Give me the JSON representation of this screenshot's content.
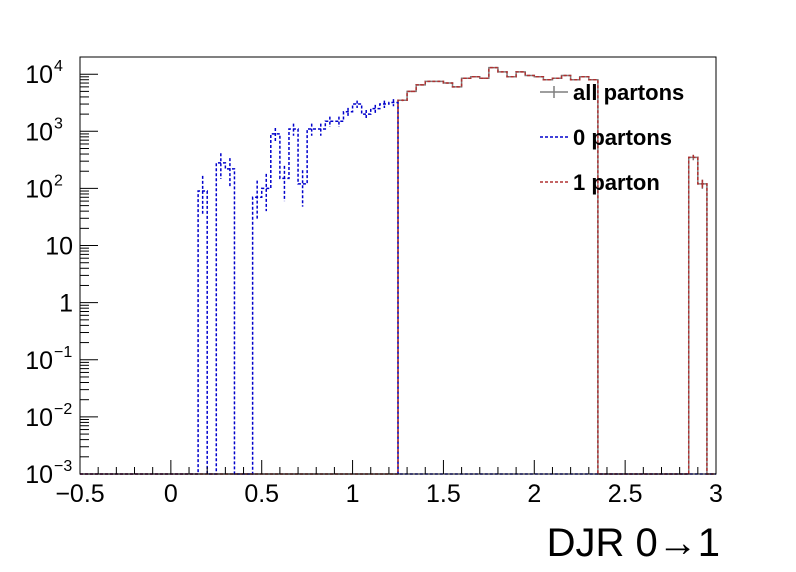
{
  "chart_data": {
    "type": "histogram",
    "title": "",
    "xlabel": "DJR 0→1",
    "ylabel": "",
    "xlim": [
      -0.5,
      3.0
    ],
    "ylim": [
      0.001,
      20000
    ],
    "yscale": "log",
    "grid": false,
    "legend_position": "top-right",
    "bin_width": 0.05,
    "x_ticks": [
      {
        "value": -0.5,
        "label": "−0.5"
      },
      {
        "value": 0,
        "label": "0"
      },
      {
        "value": 0.5,
        "label": "0.5"
      },
      {
        "value": 1,
        "label": "1"
      },
      {
        "value": 1.5,
        "label": "1.5"
      },
      {
        "value": 2,
        "label": "2"
      },
      {
        "value": 2.5,
        "label": "2.5"
      },
      {
        "value": 3,
        "label": "3"
      }
    ],
    "y_ticks": [
      {
        "value": 0.001,
        "base": "10",
        "exp": "−3"
      },
      {
        "value": 0.01,
        "base": "10",
        "exp": "−2"
      },
      {
        "value": 0.1,
        "base": "10",
        "exp": "−1"
      },
      {
        "value": 1,
        "base": "1",
        "exp": ""
      },
      {
        "value": 10,
        "base": "10",
        "exp": ""
      },
      {
        "value": 100,
        "base": "10",
        "exp": "2"
      },
      {
        "value": 1000,
        "base": "10",
        "exp": "3"
      },
      {
        "value": 10000,
        "base": "10",
        "exp": "4"
      }
    ],
    "series": [
      {
        "name": "all partons",
        "color": "#7f7f7f",
        "style": "solid",
        "bins": [
          [
            1.25,
            3500
          ],
          [
            1.3,
            5000
          ],
          [
            1.35,
            6500
          ],
          [
            1.4,
            7500
          ],
          [
            1.45,
            7500
          ],
          [
            1.5,
            7000
          ],
          [
            1.55,
            6000
          ],
          [
            1.6,
            8500
          ],
          [
            1.65,
            9000
          ],
          [
            1.7,
            8500
          ],
          [
            1.75,
            13000
          ],
          [
            1.8,
            11000
          ],
          [
            1.85,
            9000
          ],
          [
            1.9,
            11000
          ],
          [
            1.95,
            9500
          ],
          [
            2.0,
            9000
          ],
          [
            2.05,
            8000
          ],
          [
            2.1,
            8500
          ],
          [
            2.15,
            9500
          ],
          [
            2.2,
            8000
          ],
          [
            2.25,
            9000
          ],
          [
            2.3,
            8000
          ],
          [
            2.8,
            0.001
          ],
          [
            2.85,
            350
          ],
          [
            2.9,
            120
          ],
          [
            2.95,
            0.001
          ]
        ]
      },
      {
        "name": "0 partons",
        "color": "#0000cc",
        "style": "dashed",
        "bins": [
          [
            0.1,
            0.001
          ],
          [
            0.15,
            90
          ],
          [
            0.2,
            0.001
          ],
          [
            0.25,
            280
          ],
          [
            0.3,
            220
          ],
          [
            0.35,
            0.001
          ],
          [
            0.4,
            0.001
          ],
          [
            0.45,
            70
          ],
          [
            0.5,
            100
          ],
          [
            0.55,
            900
          ],
          [
            0.6,
            150
          ],
          [
            0.65,
            1100
          ],
          [
            0.7,
            120
          ],
          [
            0.75,
            1100
          ],
          [
            0.8,
            1100
          ],
          [
            0.85,
            1500
          ],
          [
            0.9,
            1500
          ],
          [
            0.95,
            2200
          ],
          [
            1.0,
            3000
          ],
          [
            1.05,
            2000
          ],
          [
            1.1,
            2500
          ],
          [
            1.15,
            3000
          ],
          [
            1.2,
            3200
          ],
          [
            1.25,
            0.001
          ]
        ]
      },
      {
        "name": "1 parton",
        "color": "#b03030",
        "style": "dashed",
        "bins": [
          [
            1.2,
            0.001
          ],
          [
            1.25,
            3500
          ],
          [
            1.3,
            5000
          ],
          [
            1.35,
            6500
          ],
          [
            1.4,
            7500
          ],
          [
            1.45,
            7500
          ],
          [
            1.5,
            7000
          ],
          [
            1.55,
            6000
          ],
          [
            1.6,
            8500
          ],
          [
            1.65,
            9000
          ],
          [
            1.7,
            8500
          ],
          [
            1.75,
            13000
          ],
          [
            1.8,
            11000
          ],
          [
            1.85,
            9000
          ],
          [
            1.9,
            11000
          ],
          [
            1.95,
            9500
          ],
          [
            2.0,
            9000
          ],
          [
            2.05,
            8000
          ],
          [
            2.1,
            8500
          ],
          [
            2.15,
            9500
          ],
          [
            2.2,
            8000
          ],
          [
            2.25,
            9000
          ],
          [
            2.3,
            8000
          ],
          [
            2.8,
            0.001
          ],
          [
            2.85,
            350
          ],
          [
            2.9,
            120
          ],
          [
            2.95,
            0.001
          ]
        ]
      }
    ]
  }
}
